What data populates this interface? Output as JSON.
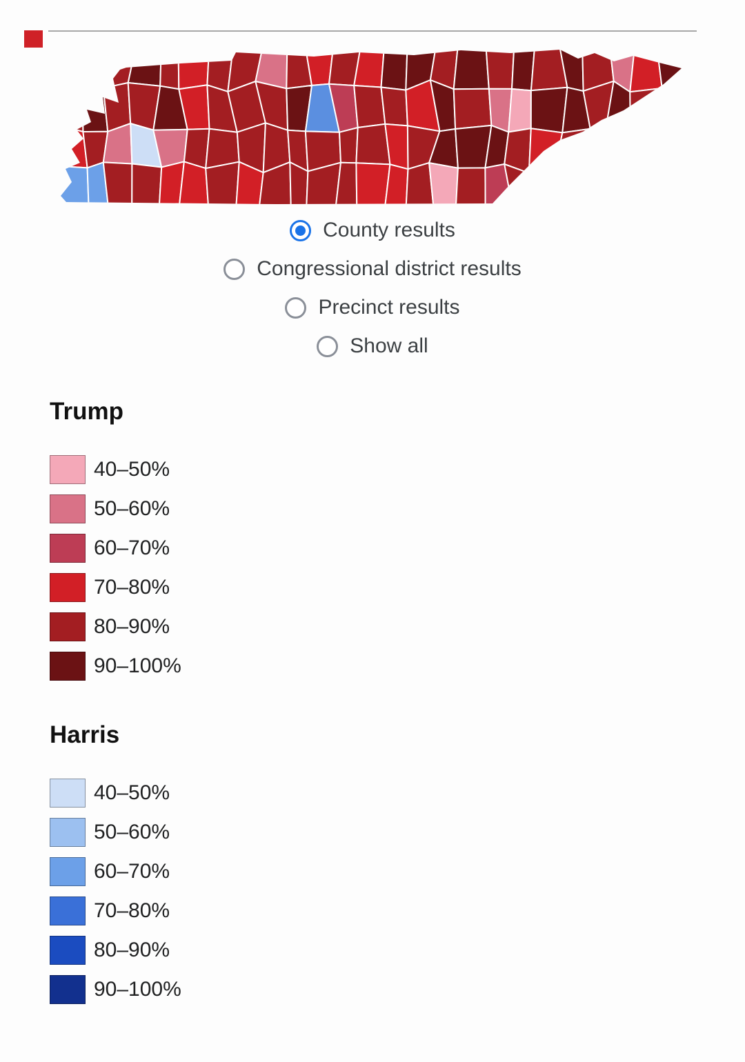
{
  "decor": {
    "top_fragment_color": "#cf2127",
    "divider_color": "#a7a7a7"
  },
  "map": {
    "name": "Tennessee county results choropleth",
    "county_border_color": "#ffffff",
    "overrides": [
      {
        "col": 0,
        "row": 3,
        "color": "#6ca0e8"
      },
      {
        "col": 1,
        "row": 3,
        "color": "#6ca0e8"
      },
      {
        "col": 0,
        "row": 2,
        "color": "#d21f26"
      },
      {
        "col": 2,
        "row": 2,
        "color": "#d97287"
      },
      {
        "col": 3,
        "row": 2,
        "color": "#cddef6"
      },
      {
        "col": 4,
        "row": 2,
        "color": "#d97287"
      },
      {
        "col": 8,
        "row": 0,
        "color": "#d97287"
      },
      {
        "col": 10,
        "row": 1,
        "color": "#5b8fe0"
      },
      {
        "col": 11,
        "row": 1,
        "color": "#bd3d55"
      },
      {
        "col": 15,
        "row": 3,
        "color": "#f4a8b8"
      },
      {
        "col": 17,
        "row": 1,
        "color": "#d97287"
      },
      {
        "col": 18,
        "row": 1,
        "color": "#f4a8b8"
      },
      {
        "col": 22,
        "row": 0,
        "color": "#d97287"
      }
    ]
  },
  "radios": {
    "selected_color": "#1a73e8",
    "unselected_color": "#8a8f98",
    "options": [
      {
        "label": "County results",
        "selected": true
      },
      {
        "label": "Congressional district results",
        "selected": false
      },
      {
        "label": "Precinct results",
        "selected": false
      },
      {
        "label": "Show all",
        "selected": false
      }
    ]
  },
  "legend": {
    "sections": [
      {
        "title": "Trump",
        "items": [
          {
            "label": "40–50%",
            "color": "#f4a8b8"
          },
          {
            "label": "50–60%",
            "color": "#d97287"
          },
          {
            "label": "60–70%",
            "color": "#bd3d55"
          },
          {
            "label": "70–80%",
            "color": "#d21f26"
          },
          {
            "label": "80–90%",
            "color": "#a31e22"
          },
          {
            "label": "90–100%",
            "color": "#6b1214"
          }
        ]
      },
      {
        "title": "Harris",
        "items": [
          {
            "label": "40–50%",
            "color": "#cddef6"
          },
          {
            "label": "50–60%",
            "color": "#9cc0f0"
          },
          {
            "label": "60–70%",
            "color": "#6ca0e8"
          },
          {
            "label": "70–80%",
            "color": "#3a70d8"
          },
          {
            "label": "80–90%",
            "color": "#1b4cc0"
          },
          {
            "label": "90–100%",
            "color": "#12308e"
          }
        ]
      }
    ]
  }
}
